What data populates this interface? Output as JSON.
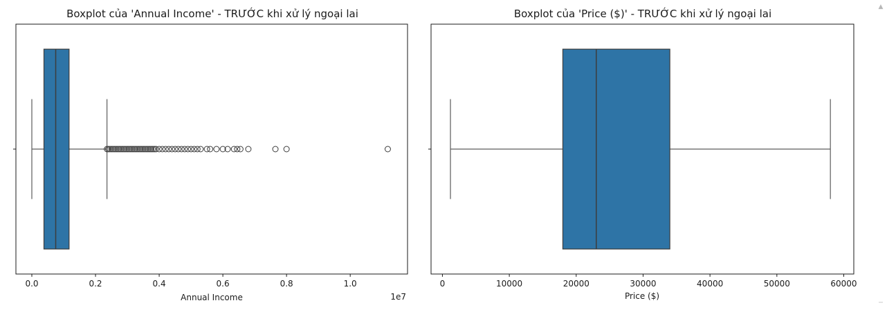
{
  "chart_data": [
    {
      "type": "box",
      "orientation": "horizontal",
      "title": "Boxplot của 'Annual Income' - TRƯỚC khi xử lý ngoại lai",
      "xlabel": "Annual Income",
      "ylabel": "",
      "x_offset_label": "1e7",
      "xlim": [
        -0.05,
        1.18
      ],
      "xticks": [
        0.0,
        0.2,
        0.4,
        0.6,
        0.8,
        1.0
      ],
      "xtick_labels": [
        "0.0",
        "0.2",
        "0.4",
        "0.6",
        "0.8",
        "1.0"
      ],
      "color": "#2e74a6",
      "box": {
        "whisker_low": 0.0,
        "q1": 0.038,
        "median": 0.075,
        "q3": 0.117,
        "whisker_high": 0.236
      },
      "outliers": [
        0.236,
        0.24,
        0.245,
        0.25,
        0.255,
        0.26,
        0.265,
        0.27,
        0.275,
        0.28,
        0.285,
        0.29,
        0.295,
        0.3,
        0.305,
        0.31,
        0.315,
        0.32,
        0.325,
        0.33,
        0.335,
        0.34,
        0.345,
        0.35,
        0.355,
        0.36,
        0.365,
        0.37,
        0.375,
        0.38,
        0.385,
        0.39,
        0.4,
        0.41,
        0.42,
        0.43,
        0.44,
        0.45,
        0.46,
        0.47,
        0.48,
        0.49,
        0.5,
        0.51,
        0.52,
        0.53,
        0.55,
        0.56,
        0.58,
        0.6,
        0.615,
        0.635,
        0.645,
        0.655,
        0.68,
        0.765,
        0.8,
        1.118
      ]
    },
    {
      "type": "box",
      "orientation": "horizontal",
      "title": "Boxplot của 'Price ($)' - TRƯỚC khi xử lý ngoại lai",
      "xlabel": "Price ($)",
      "ylabel": "",
      "x_offset_label": "",
      "xlim": [
        -1700,
        61500
      ],
      "xticks": [
        0,
        10000,
        20000,
        30000,
        40000,
        50000,
        60000
      ],
      "xtick_labels": [
        "0",
        "10000",
        "20000",
        "30000",
        "40000",
        "50000",
        "60000"
      ],
      "color": "#2e74a6",
      "box": {
        "whisker_low": 1200,
        "q1": 18000,
        "median": 23000,
        "q3": 34000,
        "whisker_high": 58000
      },
      "outliers": []
    }
  ]
}
